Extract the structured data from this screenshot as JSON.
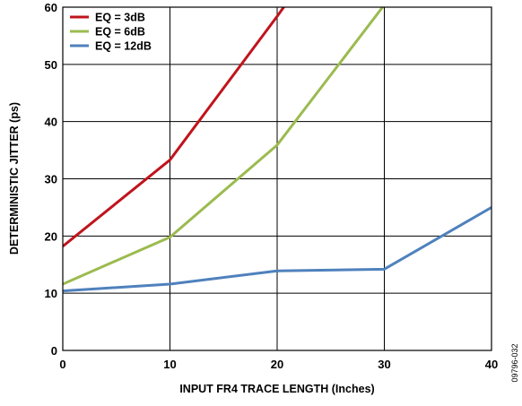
{
  "chart_data": {
    "type": "line",
    "xlabel": "INPUT FR4 TRACE LENGTH (Inches)",
    "ylabel": "DETERMINISTIC JITTER (ps)",
    "xlim": [
      0,
      40
    ],
    "ylim": [
      0,
      60
    ],
    "x_ticks": [
      "0",
      "10",
      "20",
      "30",
      "40"
    ],
    "y_ticks": [
      "0",
      "10",
      "20",
      "30",
      "40",
      "50",
      "60"
    ],
    "grid": true,
    "legend_position": "top-left",
    "figure_code": "09796-032",
    "series": [
      {
        "name": "EQ = 3dB",
        "color": "#c0141c",
        "points": [
          [
            0,
            18.2
          ],
          [
            10,
            33.3
          ],
          [
            20,
            58.4
          ],
          [
            21,
            61
          ]
        ]
      },
      {
        "name": "EQ = 6dB",
        "color": "#9bbb4f",
        "points": [
          [
            0,
            11.6
          ],
          [
            10,
            19.8
          ],
          [
            20,
            35.9
          ],
          [
            30,
            60.4
          ]
        ]
      },
      {
        "name": "EQ = 12dB",
        "color": "#4f81bd",
        "points": [
          [
            0,
            10.4
          ],
          [
            10,
            11.6
          ],
          [
            20,
            13.9
          ],
          [
            30,
            14.2
          ],
          [
            40,
            25.0
          ]
        ]
      }
    ]
  }
}
